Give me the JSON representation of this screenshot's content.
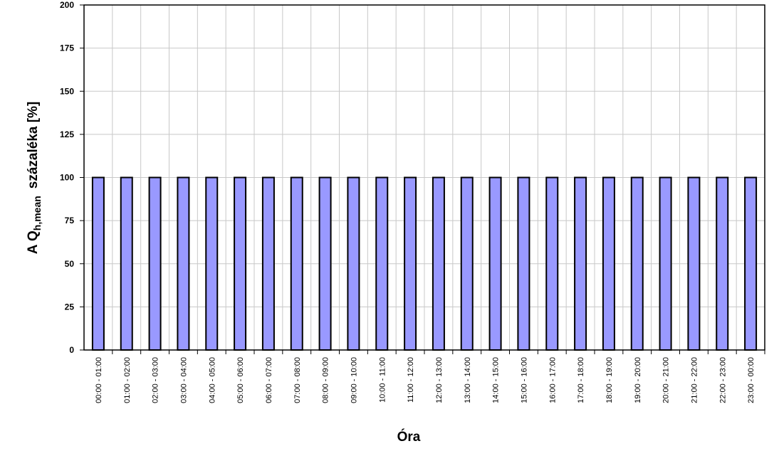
{
  "chart_data": {
    "type": "bar",
    "x_label": "Óra",
    "y_label": {
      "main": "A Q",
      "subscript": "h,mean",
      "rest": "százaléka [%]"
    },
    "categories": [
      "00:00 - 01:00",
      "01:00 - 02:00",
      "02:00 - 03:00",
      "03:00 - 04:00",
      "04:00 - 05:00",
      "05:00 - 06:00",
      "06:00 - 07:00",
      "07:00 - 08:00",
      "08:00 - 09:00",
      "09:00 - 10:00",
      "10:00 - 11:00",
      "11:00 - 12:00",
      "12:00 - 13:00",
      "13:00 - 14:00",
      "14:00 - 15:00",
      "15:00 - 16:00",
      "16:00 - 17:00",
      "17:00 - 18:00",
      "18:00 - 19:00",
      "19:00 - 20:00",
      "20:00 - 21:00",
      "21:00 - 22:00",
      "22:00 - 23:00",
      "23:00 - 00:00"
    ],
    "values": [
      100,
      100,
      100,
      100,
      100,
      100,
      100,
      100,
      100,
      100,
      100,
      100,
      100,
      100,
      100,
      100,
      100,
      100,
      100,
      100,
      100,
      100,
      100,
      100
    ],
    "color": "#9999ff",
    "ylim": [
      0,
      200
    ],
    "yticks": [
      0,
      25,
      50,
      75,
      100,
      125,
      150,
      175,
      200
    ],
    "grid": true
  }
}
